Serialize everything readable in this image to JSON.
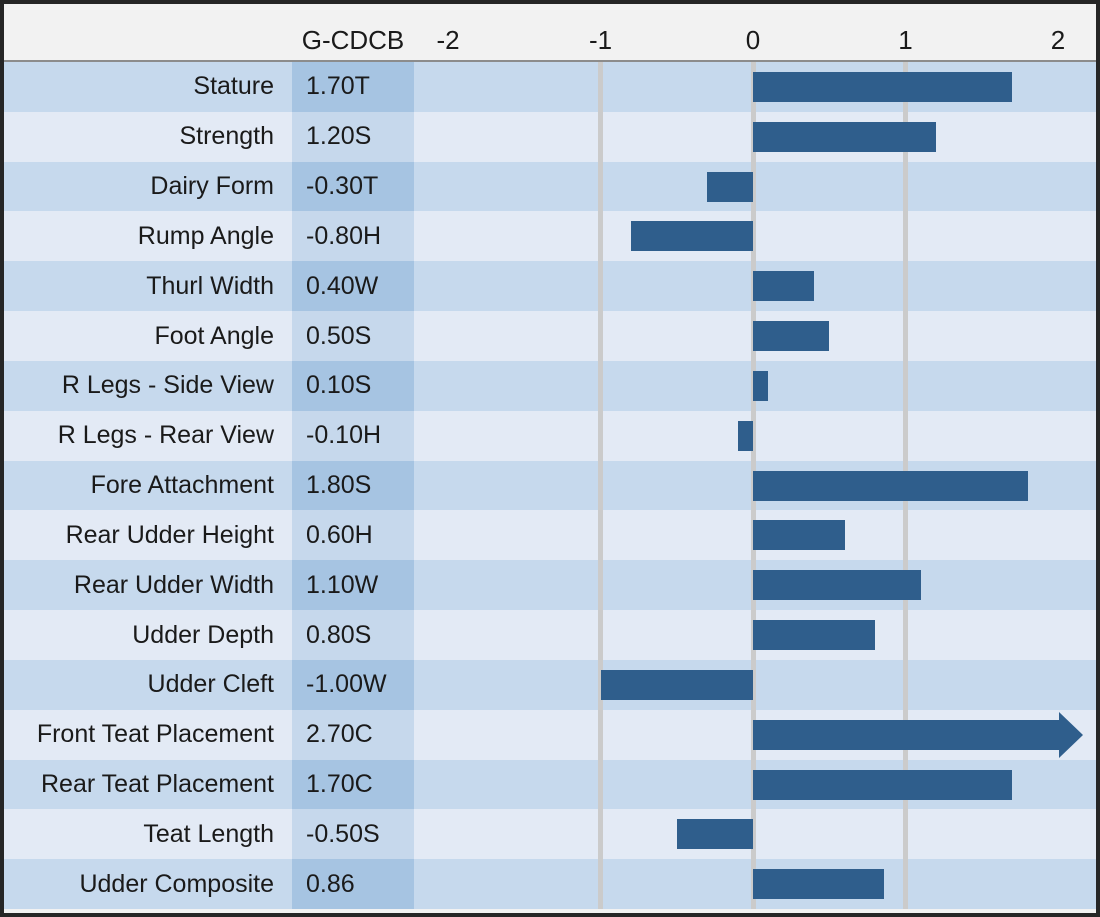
{
  "header": {
    "value_column_label": "G-CDCB",
    "axis_ticks": [
      "-2",
      "-1",
      "0",
      "1",
      "2"
    ]
  },
  "rows": [
    {
      "trait": "Stature",
      "value_label": "1.70T",
      "value": 1.7
    },
    {
      "trait": "Strength",
      "value_label": "1.20S",
      "value": 1.2
    },
    {
      "trait": "Dairy Form",
      "value_label": "-0.30T",
      "value": -0.3
    },
    {
      "trait": "Rump Angle",
      "value_label": "-0.80H",
      "value": -0.8
    },
    {
      "trait": "Thurl Width",
      "value_label": "0.40W",
      "value": 0.4
    },
    {
      "trait": "Foot Angle",
      "value_label": "0.50S",
      "value": 0.5
    },
    {
      "trait": "R Legs - Side View",
      "value_label": "0.10S",
      "value": 0.1
    },
    {
      "trait": "R Legs - Rear View",
      "value_label": "-0.10H",
      "value": -0.1
    },
    {
      "trait": "Fore Attachment",
      "value_label": "1.80S",
      "value": 1.8
    },
    {
      "trait": "Rear Udder Height",
      "value_label": "0.60H",
      "value": 0.6
    },
    {
      "trait": "Rear Udder Width",
      "value_label": "1.10W",
      "value": 1.1
    },
    {
      "trait": "Udder Depth",
      "value_label": "0.80S",
      "value": 0.8
    },
    {
      "trait": "Udder Cleft",
      "value_label": "-1.00W",
      "value": -1.0
    },
    {
      "trait": "Front Teat Placement",
      "value_label": "2.70C",
      "value": 2.7,
      "overflow_arrow": true
    },
    {
      "trait": "Rear Teat Placement",
      "value_label": "1.70C",
      "value": 1.7
    },
    {
      "trait": "Teat Length",
      "value_label": "-0.50S",
      "value": -0.5
    },
    {
      "trait": "Udder Composite",
      "value_label": "0.86",
      "value": 0.86
    }
  ],
  "chart_data": {
    "type": "bar",
    "orientation": "horizontal",
    "title": "",
    "series_label": "G-CDCB",
    "categories": [
      "Stature",
      "Strength",
      "Dairy Form",
      "Rump Angle",
      "Thurl Width",
      "Foot Angle",
      "R Legs - Side View",
      "R Legs - Rear View",
      "Fore Attachment",
      "Rear Udder Height",
      "Rear Udder Width",
      "Udder Depth",
      "Udder Cleft",
      "Front Teat Placement",
      "Rear Teat Placement",
      "Teat Length",
      "Udder Composite"
    ],
    "values": [
      1.7,
      1.2,
      -0.3,
      -0.8,
      0.4,
      0.5,
      0.1,
      -0.1,
      1.8,
      0.6,
      1.1,
      0.8,
      -1.0,
      2.7,
      1.7,
      -0.5,
      0.86
    ],
    "value_labels": [
      "1.70T",
      "1.20S",
      "-0.30T",
      "-0.80H",
      "0.40W",
      "0.50S",
      "0.10S",
      "-0.10H",
      "1.80S",
      "0.60H",
      "1.10W",
      "0.80S",
      "-1.00W",
      "2.70C",
      "1.70C",
      "-0.50S",
      "0.86"
    ],
    "xlim": [
      -2.25,
      2.25
    ],
    "x_ticks": [
      -2,
      -1,
      0,
      1,
      2
    ],
    "gridlines_at": [
      -1,
      0,
      1
    ],
    "grid": true,
    "legend_position": "none",
    "bar_color": "#2f5e8c",
    "note": "Front Teat Placement (2.70C) exceeds axis maximum and is drawn with an arrowhead clipped at the right edge"
  },
  "colors": {
    "bar": "#2f5e8c",
    "row_dark": "#c6d9ed",
    "row_dark_value_cell": "#a6c4e2",
    "row_light": "#e3eaf5",
    "row_light_value_cell": "#c6d8ec",
    "header_bg": "#f2f2f2",
    "gridline": "#cbcbcb",
    "border": "#262626",
    "text": "#1a1a1a"
  }
}
